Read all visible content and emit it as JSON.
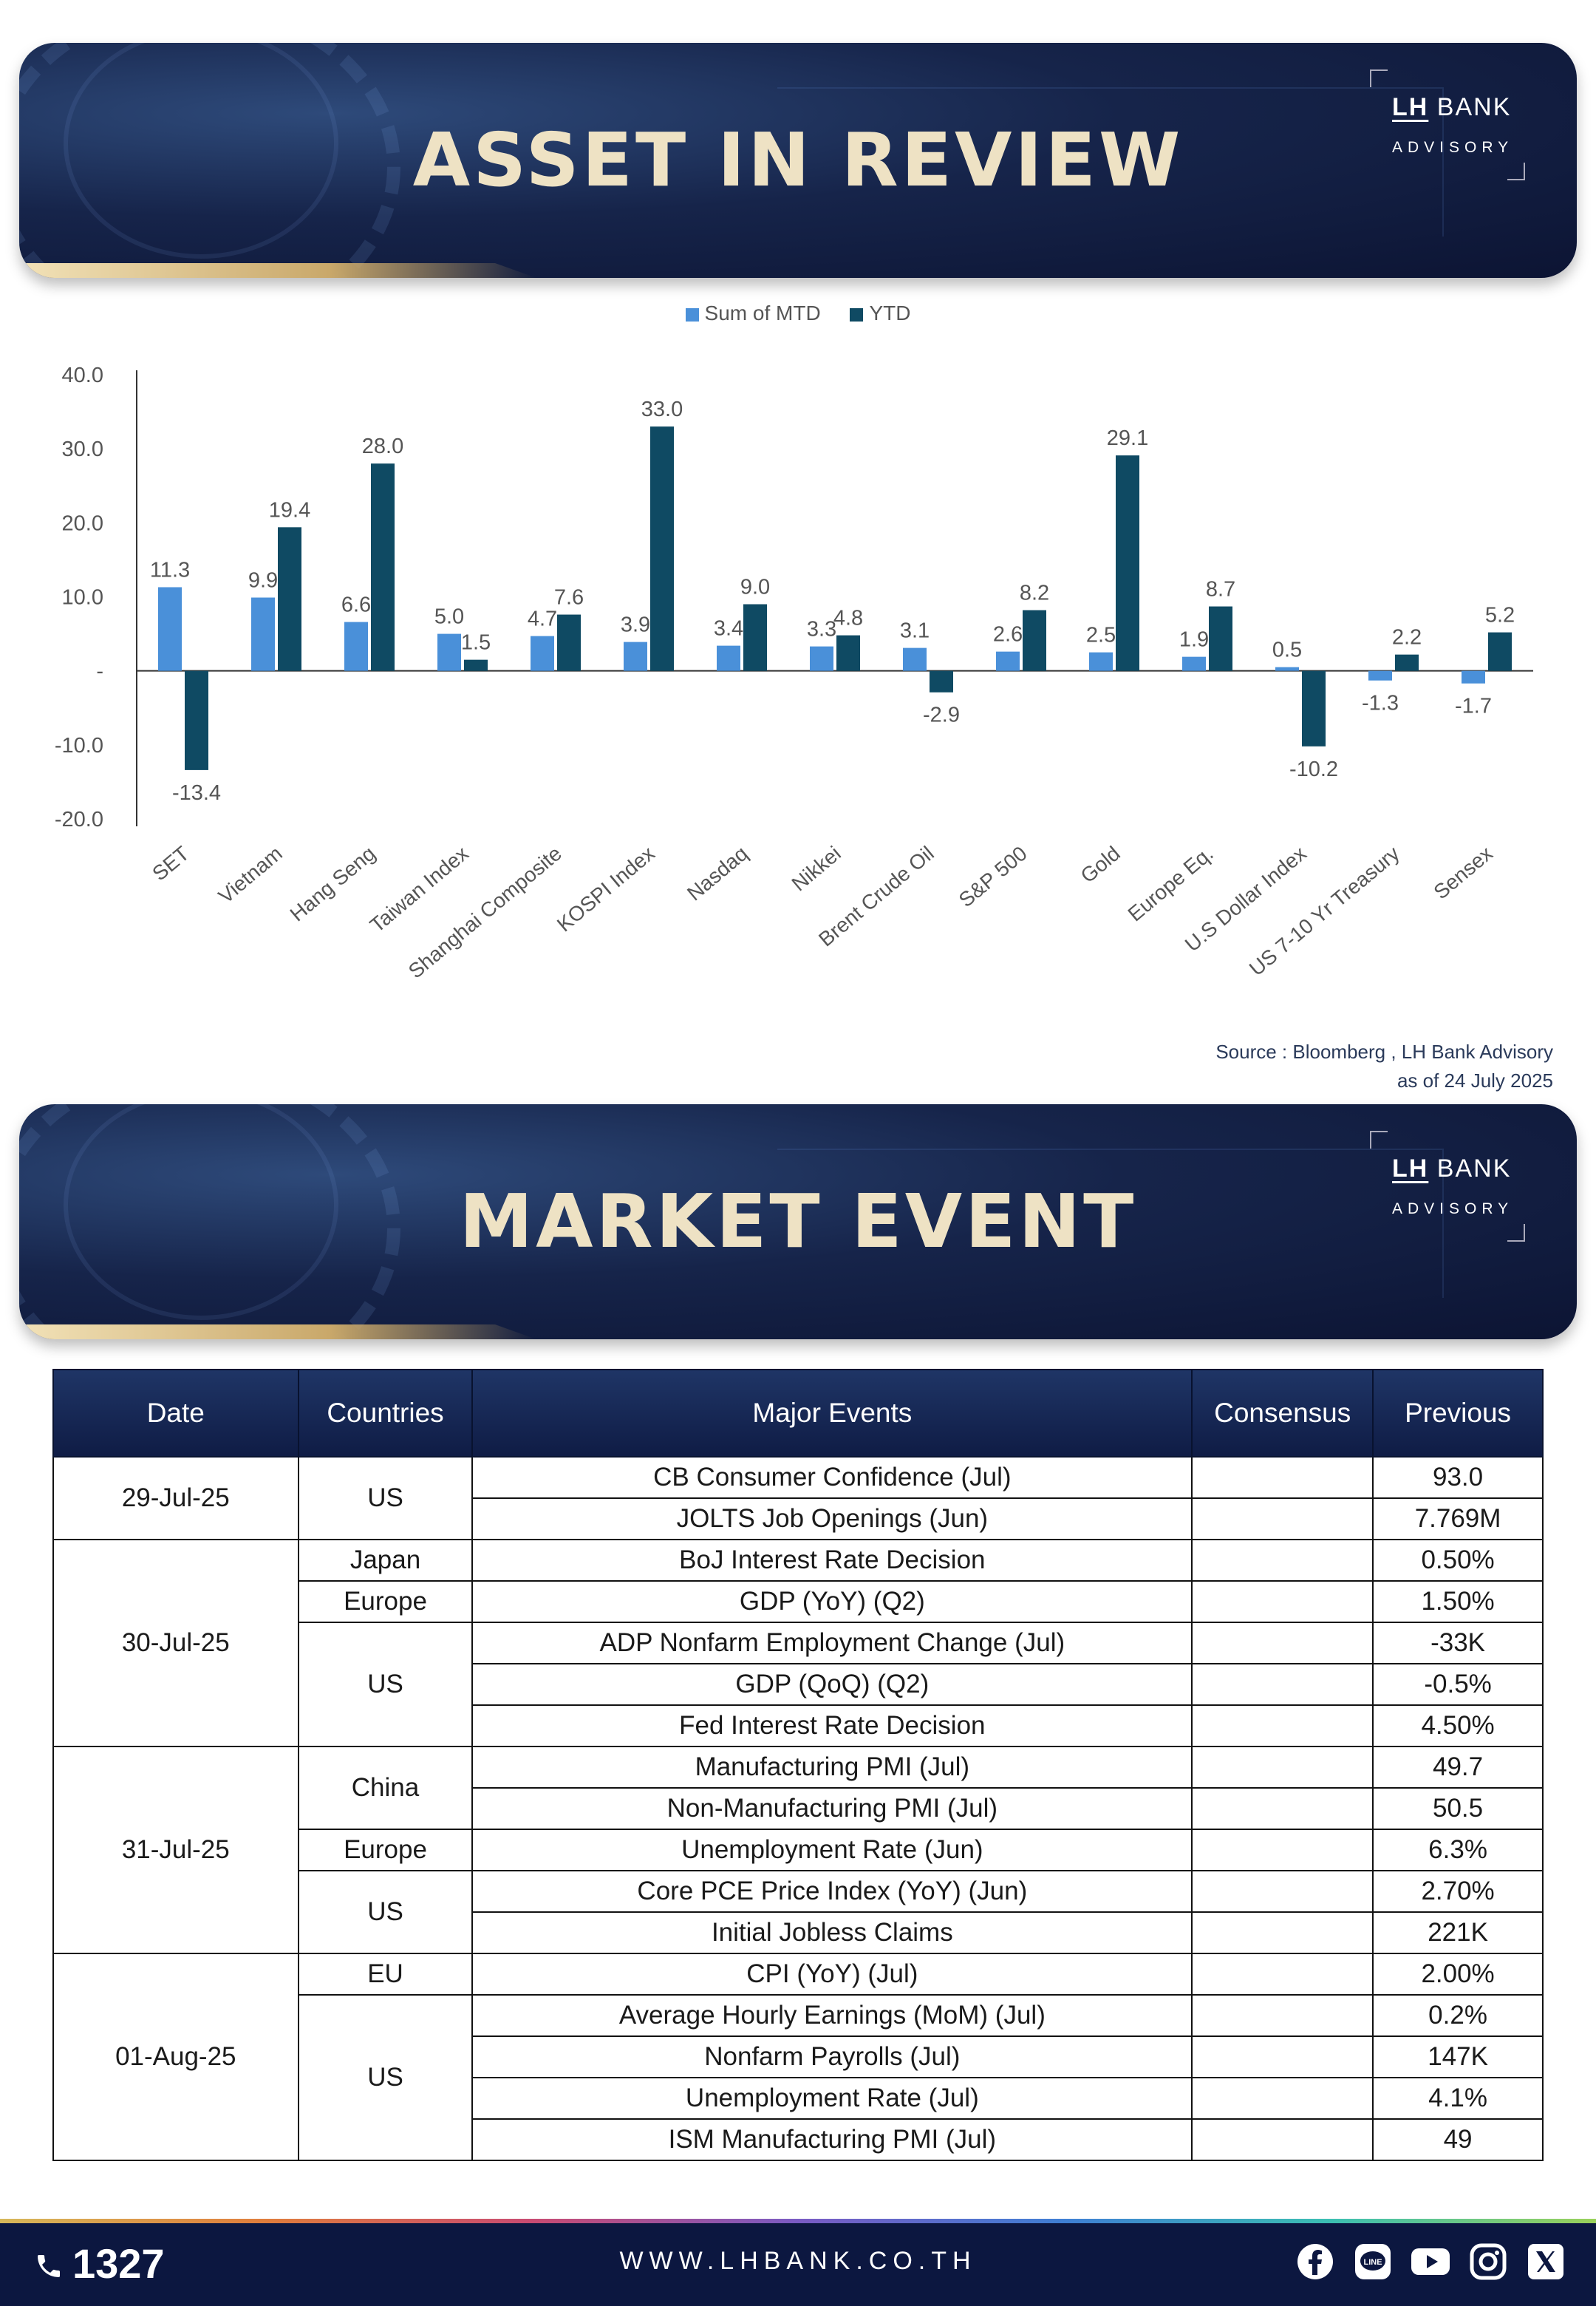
{
  "brand": {
    "logo_main": "LH",
    "logo_bank": "BANK",
    "logo_sub": "ADVISORY"
  },
  "section1": {
    "title": "ASSET IN REVIEW"
  },
  "section2": {
    "title": "MARKET EVENT"
  },
  "chart_data": {
    "type": "bar",
    "categories": [
      "SET",
      "Vietnam",
      "Hang Seng",
      "Taiwan Index",
      "Shanghai Composite",
      "KOSPI Index",
      "Nasdaq",
      "Nikkei",
      "Brent Crude Oil",
      "S&P 500",
      "Gold",
      "Europe Eq.",
      "U.S Dollar Index",
      "US 7-10 Yr Treasury",
      "Sensex"
    ],
    "series": [
      {
        "name": "Sum of MTD",
        "color": "#4a90d9",
        "values": [
          11.3,
          9.9,
          6.6,
          5.0,
          4.7,
          3.9,
          3.4,
          3.3,
          3.1,
          2.6,
          2.5,
          1.9,
          0.5,
          -1.3,
          -1.7
        ]
      },
      {
        "name": "YTD",
        "color": "#0f4a63",
        "values": [
          -13.4,
          19.4,
          28.0,
          1.5,
          7.6,
          33.0,
          9.0,
          4.8,
          -2.9,
          8.2,
          29.1,
          8.7,
          -10.2,
          2.2,
          5.2
        ]
      }
    ],
    "yticks": [
      "40.0",
      "30.0",
      "20.0",
      "10.0",
      "-",
      "-10.0",
      "-20.0"
    ],
    "ylim": [
      -20,
      40
    ],
    "legend_position": "top-center",
    "grid": false
  },
  "source": {
    "line1": "Source : Bloomberg , LH Bank Advisory",
    "line2": "as of 24 July 2025"
  },
  "table": {
    "headers": [
      "Date",
      "Countries",
      "Major Events",
      "Consensus",
      "Previous"
    ],
    "groups": [
      {
        "date": "29-Jul-25",
        "countries": [
          {
            "name": "US",
            "events": [
              {
                "event": "CB Consumer Confidence (Jul)",
                "consensus": "",
                "previous": "93.0"
              },
              {
                "event": "JOLTS Job Openings (Jun)",
                "consensus": "",
                "previous": "7.769M"
              }
            ]
          }
        ]
      },
      {
        "date": "30-Jul-25",
        "countries": [
          {
            "name": "Japan",
            "events": [
              {
                "event": "BoJ Interest Rate Decision",
                "consensus": "",
                "previous": "0.50%"
              }
            ]
          },
          {
            "name": "Europe",
            "events": [
              {
                "event": "GDP (YoY) (Q2)",
                "consensus": "",
                "previous": "1.50%"
              }
            ]
          },
          {
            "name": "US",
            "events": [
              {
                "event": "ADP Nonfarm Employment Change (Jul)",
                "consensus": "",
                "previous": "-33K"
              },
              {
                "event": "GDP (QoQ) (Q2)",
                "consensus": "",
                "previous": "-0.5%"
              },
              {
                "event": "Fed Interest Rate Decision",
                "consensus": "",
                "previous": "4.50%"
              }
            ]
          }
        ]
      },
      {
        "date": "31-Jul-25",
        "countries": [
          {
            "name": "China",
            "events": [
              {
                "event": "Manufacturing PMI (Jul)",
                "consensus": "",
                "previous": "49.7"
              },
              {
                "event": "Non-Manufacturing PMI (Jul)",
                "consensus": "",
                "previous": "50.5"
              }
            ]
          },
          {
            "name": "Europe",
            "events": [
              {
                "event": "Unemployment Rate (Jun)",
                "consensus": "",
                "previous": "6.3%"
              }
            ]
          },
          {
            "name": "US",
            "events": [
              {
                "event": "Core PCE Price Index (YoY) (Jun)",
                "consensus": "",
                "previous": "2.70%"
              },
              {
                "event": "Initial Jobless Claims",
                "consensus": "",
                "previous": "221K"
              }
            ]
          }
        ]
      },
      {
        "date": "01-Aug-25",
        "countries": [
          {
            "name": "EU",
            "events": [
              {
                "event": "CPI (YoY) (Jul)",
                "consensus": "",
                "previous": "2.00%"
              }
            ]
          },
          {
            "name": "US",
            "events": [
              {
                "event": "Average Hourly Earnings (MoM) (Jul)",
                "consensus": "",
                "previous": "0.2%"
              },
              {
                "event": "Nonfarm Payrolls (Jul)",
                "consensus": "",
                "previous": "147K"
              },
              {
                "event": "Unemployment Rate (Jul)",
                "consensus": "",
                "previous": "4.1%"
              },
              {
                "event": "ISM Manufacturing PMI (Jul)",
                "consensus": "",
                "previous": "49"
              }
            ]
          }
        ]
      }
    ]
  },
  "footer": {
    "phone": "1327",
    "website": "WWW.LHBANK.CO.TH",
    "social_icons": [
      "facebook-icon",
      "line-icon",
      "youtube-icon",
      "instagram-icon",
      "x-icon"
    ]
  }
}
